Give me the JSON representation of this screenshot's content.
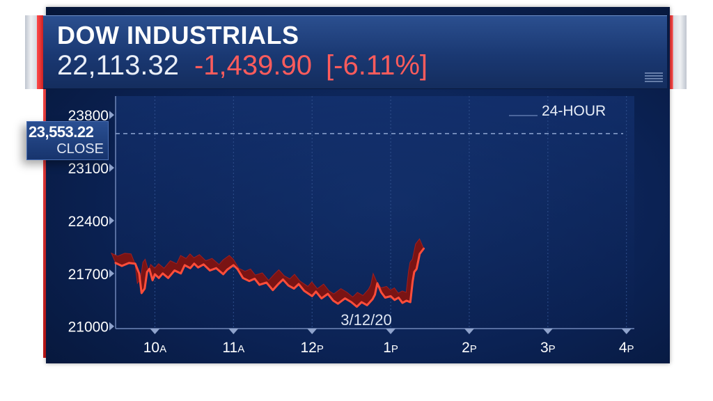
{
  "header": {
    "title": "DOW INDUSTRIALS",
    "last": "22,113.32",
    "change": "-1,439.90",
    "percent": "[-6.11%]"
  },
  "close_tag": {
    "value": "23,553.22",
    "label": "CLOSE"
  },
  "chart_data": {
    "type": "line",
    "range_label": "24-HOUR",
    "date_label": "3/12/20",
    "y_ticks": [
      "21000",
      "21700",
      "22400",
      "23100",
      "23800"
    ],
    "y_tick_values": [
      21000,
      21700,
      22400,
      23100,
      23800
    ],
    "ylim": [
      20970,
      24050
    ],
    "x_ticks": [
      {
        "hour": 10,
        "num": "10",
        "suffix": "A"
      },
      {
        "hour": 11,
        "num": "11",
        "suffix": "A"
      },
      {
        "hour": 12,
        "num": "12",
        "suffix": "P"
      },
      {
        "hour": 13,
        "num": "1",
        "suffix": "P"
      },
      {
        "hour": 14,
        "num": "2",
        "suffix": "P"
      },
      {
        "hour": 15,
        "num": "3",
        "suffix": "P"
      },
      {
        "hour": 16,
        "num": "4",
        "suffix": "P"
      }
    ],
    "xlim": [
      9.5,
      16.1
    ],
    "previous_close": 23553.22,
    "series": [
      {
        "color": "#ff4d3a",
        "points": [
          [
            9.5,
            21840
          ],
          [
            9.58,
            21800
          ],
          [
            9.67,
            21840
          ],
          [
            9.75,
            21830
          ],
          [
            9.8,
            21700
          ],
          [
            9.83,
            21440
          ],
          [
            9.87,
            21500
          ],
          [
            9.9,
            21720
          ],
          [
            9.93,
            21760
          ],
          [
            9.97,
            21610
          ],
          [
            10.0,
            21690
          ],
          [
            10.05,
            21640
          ],
          [
            10.1,
            21700
          ],
          [
            10.17,
            21640
          ],
          [
            10.25,
            21740
          ],
          [
            10.33,
            21700
          ],
          [
            10.38,
            21810
          ],
          [
            10.45,
            21770
          ],
          [
            10.5,
            21830
          ],
          [
            10.55,
            21780
          ],
          [
            10.62,
            21820
          ],
          [
            10.7,
            21740
          ],
          [
            10.78,
            21770
          ],
          [
            10.87,
            21690
          ],
          [
            10.92,
            21750
          ],
          [
            11.0,
            21810
          ],
          [
            11.05,
            21760
          ],
          [
            11.12,
            21640
          ],
          [
            11.2,
            21600
          ],
          [
            11.27,
            21630
          ],
          [
            11.33,
            21550
          ],
          [
            11.42,
            21580
          ],
          [
            11.5,
            21480
          ],
          [
            11.57,
            21560
          ],
          [
            11.63,
            21620
          ],
          [
            11.7,
            21540
          ],
          [
            11.77,
            21500
          ],
          [
            11.83,
            21560
          ],
          [
            11.9,
            21470
          ],
          [
            12.0,
            21400
          ],
          [
            12.05,
            21460
          ],
          [
            12.12,
            21370
          ],
          [
            12.2,
            21430
          ],
          [
            12.27,
            21340
          ],
          [
            12.33,
            21300
          ],
          [
            12.42,
            21370
          ],
          [
            12.5,
            21320
          ],
          [
            12.57,
            21260
          ],
          [
            12.63,
            21320
          ],
          [
            12.7,
            21280
          ],
          [
            12.77,
            21360
          ],
          [
            12.8,
            21420
          ],
          [
            12.83,
            21570
          ],
          [
            12.88,
            21450
          ],
          [
            12.93,
            21380
          ],
          [
            13.0,
            21400
          ],
          [
            13.05,
            21350
          ],
          [
            13.1,
            21380
          ],
          [
            13.15,
            21310
          ],
          [
            13.2,
            21340
          ],
          [
            13.25,
            21320
          ],
          [
            13.28,
            21600
          ],
          [
            13.3,
            21720
          ],
          [
            13.33,
            21760
          ],
          [
            13.37,
            21960
          ],
          [
            13.42,
            22030
          ]
        ]
      }
    ]
  }
}
